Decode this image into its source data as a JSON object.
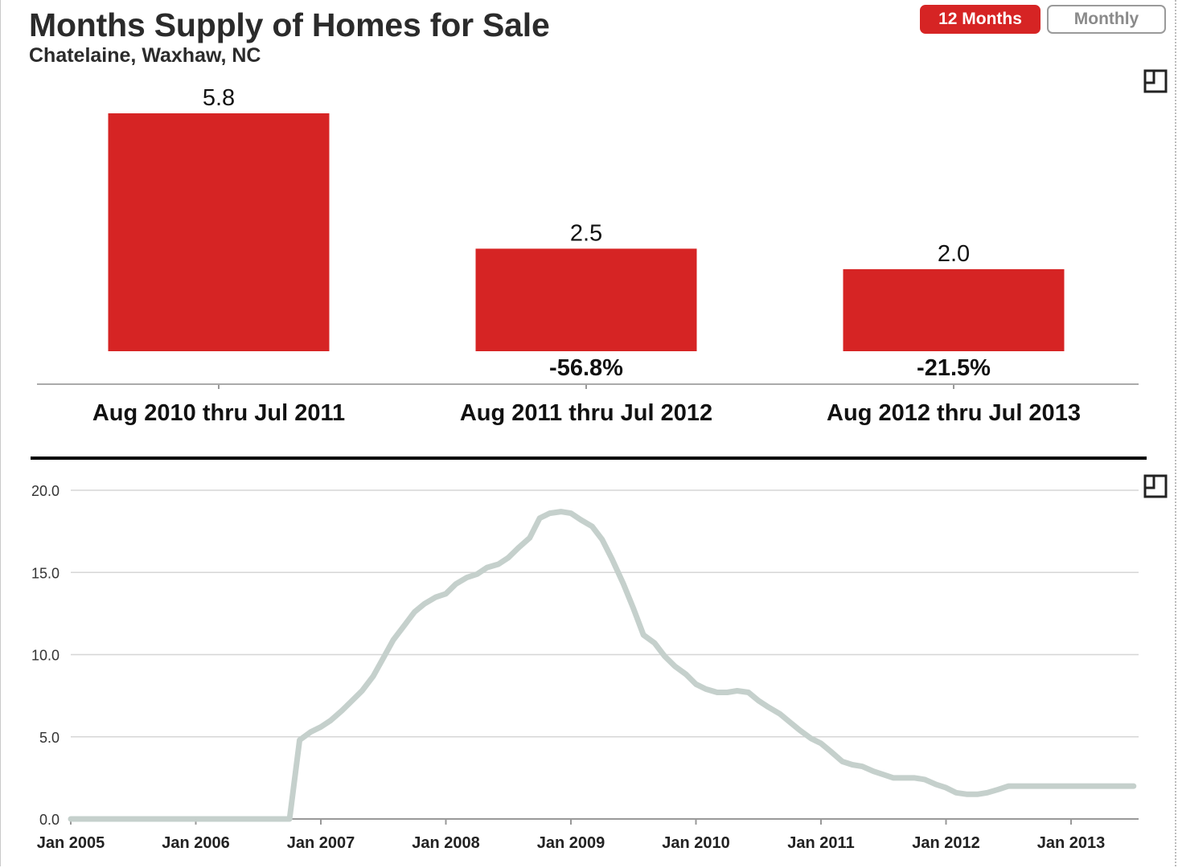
{
  "header": {
    "title": "Months Supply of Homes for Sale",
    "subtitle": "Chatelaine, Waxhaw, NC"
  },
  "toggles": {
    "twelve_months": "12 Months",
    "monthly": "Monthly"
  },
  "icons": {
    "expand": "expand-icon"
  },
  "colors": {
    "bar": "#d62424",
    "line": "#c5d0cc",
    "axis": "#999999",
    "grid": "#d6d6d6",
    "divider": "#000000"
  },
  "chart_data": [
    {
      "type": "bar",
      "title": "Months Supply of Homes for Sale",
      "categories": [
        "Aug 2010 thru Jul 2011",
        "Aug 2011 thru Jul 2012",
        "Aug 2012 thru Jul 2013"
      ],
      "values": [
        5.8,
        2.5,
        2.0
      ],
      "value_labels": [
        "5.8",
        "2.5",
        "2.0"
      ],
      "change_labels": [
        "",
        "-56.8%",
        "-21.5%"
      ],
      "ylim": [
        0,
        5.8
      ],
      "xlabel": "",
      "ylabel": ""
    },
    {
      "type": "line",
      "xlabel": "",
      "ylabel": "",
      "ylim": [
        0,
        20
      ],
      "yticks": [
        0,
        5,
        10,
        15,
        20
      ],
      "ytick_labels": [
        "0.0",
        "5.0",
        "10.0",
        "15.0",
        "20.0"
      ],
      "xlim": [
        2005.0,
        2013.5
      ],
      "xticks": [
        2005,
        2006,
        2007,
        2008,
        2009,
        2010,
        2011,
        2012,
        2013
      ],
      "xtick_labels": [
        "Jan 2005",
        "Jan 2006",
        "Jan 2007",
        "Jan 2008",
        "Jan 2009",
        "Jan 2010",
        "Jan 2011",
        "Jan 2012",
        "Jan 2013"
      ],
      "grid": true,
      "series": [
        {
          "name": "Months Supply",
          "x": [
            2005.0,
            2006.0,
            2006.75,
            2006.83,
            2006.92,
            2007.0,
            2007.08,
            2007.17,
            2007.25,
            2007.33,
            2007.42,
            2007.5,
            2007.58,
            2007.67,
            2007.75,
            2007.83,
            2007.92,
            2008.0,
            2008.08,
            2008.17,
            2008.25,
            2008.33,
            2008.42,
            2008.5,
            2008.58,
            2008.67,
            2008.75,
            2008.83,
            2008.92,
            2009.0,
            2009.08,
            2009.17,
            2009.25,
            2009.33,
            2009.42,
            2009.5,
            2009.58,
            2009.67,
            2009.75,
            2009.83,
            2009.92,
            2010.0,
            2010.08,
            2010.17,
            2010.25,
            2010.33,
            2010.42,
            2010.5,
            2010.58,
            2010.67,
            2010.75,
            2010.83,
            2010.92,
            2011.0,
            2011.08,
            2011.17,
            2011.25,
            2011.33,
            2011.42,
            2011.5,
            2011.58,
            2011.67,
            2011.75,
            2011.83,
            2011.92,
            2012.0,
            2012.08,
            2012.17,
            2012.25,
            2012.33,
            2012.42,
            2012.5,
            2012.58,
            2012.67,
            2012.75,
            2012.83,
            2012.92,
            2013.0,
            2013.08,
            2013.17,
            2013.25,
            2013.33,
            2013.42,
            2013.5
          ],
          "values": [
            0.0,
            0.0,
            0.0,
            4.8,
            5.3,
            5.6,
            6.0,
            6.6,
            7.2,
            7.8,
            8.7,
            9.8,
            10.9,
            11.8,
            12.6,
            13.1,
            13.5,
            13.7,
            14.3,
            14.7,
            14.9,
            15.3,
            15.5,
            15.9,
            16.5,
            17.1,
            18.3,
            18.6,
            18.7,
            18.6,
            18.2,
            17.8,
            17.0,
            15.8,
            14.3,
            12.8,
            11.2,
            10.7,
            9.9,
            9.3,
            8.8,
            8.2,
            7.9,
            7.7,
            7.7,
            7.8,
            7.7,
            7.2,
            6.8,
            6.4,
            5.9,
            5.4,
            4.9,
            4.6,
            4.1,
            3.5,
            3.3,
            3.2,
            2.9,
            2.7,
            2.5,
            2.5,
            2.5,
            2.4,
            2.1,
            1.9,
            1.6,
            1.5,
            1.5,
            1.6,
            1.8,
            2.0,
            2.0,
            2.0,
            2.0,
            2.0,
            2.0,
            2.0,
            2.0,
            2.0,
            2.0,
            2.0,
            2.0,
            2.0
          ]
        }
      ]
    }
  ]
}
